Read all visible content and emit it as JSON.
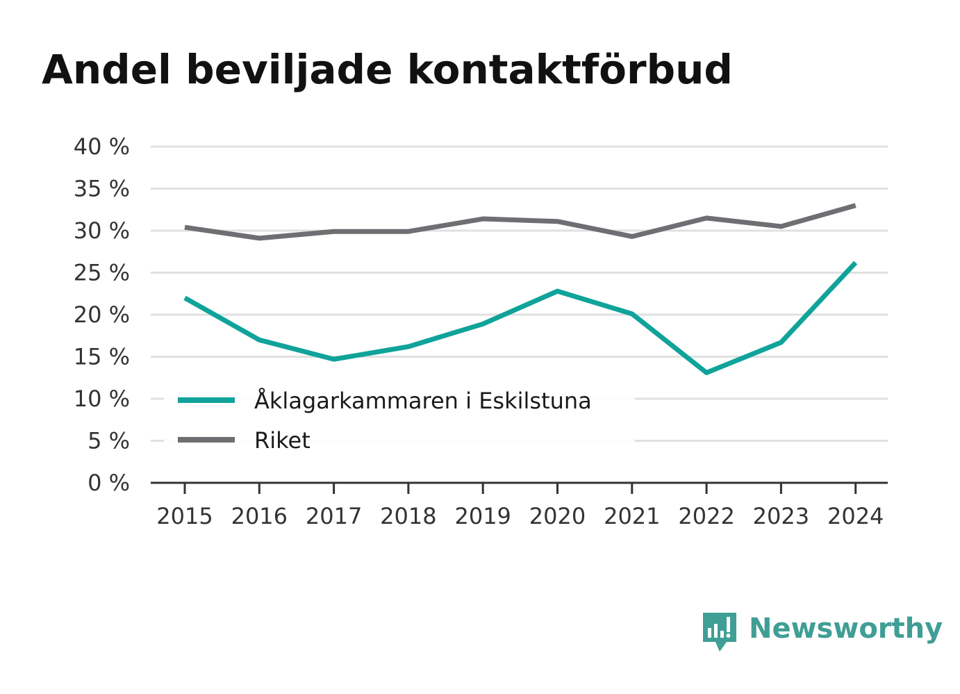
{
  "chart_data": {
    "type": "line",
    "title": "Andel beviljade kontaktförbud",
    "categories": [
      "2015",
      "2016",
      "2017",
      "2018",
      "2019",
      "2020",
      "2021",
      "2022",
      "2023",
      "2024"
    ],
    "y_ticks": [
      "0 %",
      "5 %",
      "10 %",
      "15 %",
      "20 %",
      "25 %",
      "30 %",
      "35 %",
      "40 %"
    ],
    "ylim": [
      0,
      40
    ],
    "grid": true,
    "legend_position": "lower-left",
    "series": [
      {
        "name": "Åklagarkammaren i Eskilstuna",
        "color": "#0fa39a",
        "values": [
          22.0,
          17.0,
          14.7,
          16.2,
          18.9,
          22.8,
          20.1,
          13.1,
          16.7,
          26.2
        ]
      },
      {
        "name": "Riket",
        "color": "#6e6e73",
        "values": [
          30.4,
          29.1,
          29.9,
          29.9,
          31.4,
          31.1,
          29.3,
          31.5,
          30.5,
          33.0
        ]
      }
    ]
  },
  "brand": {
    "name": "Newsworthy",
    "color": "#3f9e95"
  }
}
